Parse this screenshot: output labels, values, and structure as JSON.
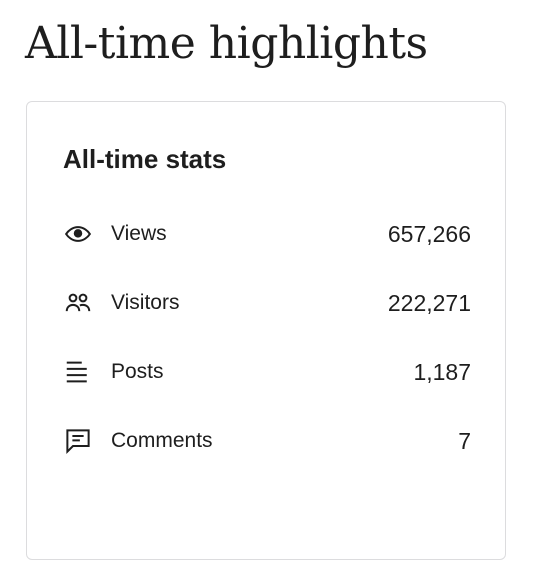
{
  "page": {
    "heading": "All-time highlights"
  },
  "card": {
    "title": "All-time stats",
    "stats": [
      {
        "label": "Views",
        "value": "657,266",
        "icon": "eye-icon"
      },
      {
        "label": "Visitors",
        "value": "222,271",
        "icon": "people-icon"
      },
      {
        "label": "Posts",
        "value": "1,187",
        "icon": "posts-lines-icon"
      },
      {
        "label": "Comments",
        "value": "7",
        "icon": "comment-icon"
      }
    ]
  },
  "colors": {
    "text": "#1e1e1e",
    "border": "#dcdcde",
    "background": "#ffffff"
  }
}
